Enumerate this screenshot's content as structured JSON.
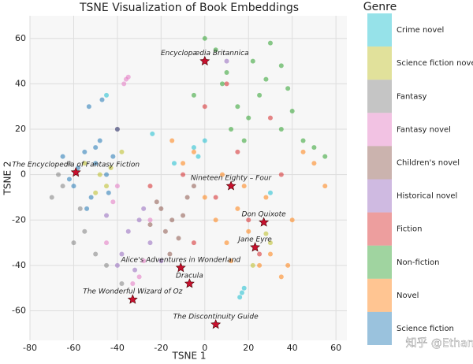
{
  "chart_data": {
    "type": "scatter",
    "title": "TSNE Visualization of Book Embeddings",
    "x_label": "TSNE 1",
    "y_label": "TSNE 2",
    "legend_title": "Genre",
    "watermark": "知乎 @Ethan",
    "xlim": [
      -80,
      65
    ],
    "ylim": [
      -73,
      70
    ],
    "xticks": [
      -80,
      -60,
      -40,
      -20,
      0,
      20,
      40,
      60
    ],
    "yticks": [
      -60,
      -40,
      -20,
      0,
      20,
      40,
      60
    ],
    "grid": true,
    "series": [
      {
        "name": "Crime novel",
        "color": "#17becf",
        "x": [
          -5,
          -3,
          0,
          17,
          18,
          16,
          -45,
          -14,
          30,
          -24
        ],
        "y": [
          12,
          8,
          15,
          -52,
          -50,
          -54,
          35,
          5,
          -8,
          18
        ]
      },
      {
        "name": "Science fiction novel",
        "color": "#bcbd22",
        "x": [
          -45,
          -48,
          -43,
          -50,
          30,
          28,
          -38,
          -55,
          22
        ],
        "y": [
          -5,
          0,
          3,
          -8,
          -30,
          -26,
          10,
          5,
          -40
        ]
      },
      {
        "name": "Fantasy",
        "color": "#7f7f7f",
        "x": [
          -55,
          -60,
          -65,
          -67,
          -50,
          -57,
          -38,
          -62,
          -45,
          -70
        ],
        "y": [
          -25,
          -30,
          -5,
          0,
          -35,
          -15,
          -48,
          5,
          -40,
          -10
        ]
      },
      {
        "name": "Fantasy novel",
        "color": "#e377c2",
        "x": [
          -40,
          -35,
          -30,
          -33,
          -36,
          -25,
          -42,
          -37,
          -28,
          -45
        ],
        "y": [
          -5,
          43,
          -45,
          -48,
          42,
          -20,
          -12,
          40,
          -38,
          -30
        ]
      },
      {
        "name": "Children's novel",
        "color": "#8c564b",
        "x": [
          -20,
          -15,
          -10,
          -18,
          -8,
          -22,
          -12,
          -25,
          -5,
          -16
        ],
        "y": [
          -15,
          -20,
          -18,
          -25,
          -10,
          -12,
          -28,
          -22,
          -5,
          -35
        ]
      },
      {
        "name": "Historical novel",
        "color": "#9467bd",
        "x": [
          -30,
          -35,
          -40,
          -25,
          -38,
          -28,
          -45,
          -32,
          10,
          -20
        ],
        "y": [
          -20,
          -25,
          -40,
          -30,
          -35,
          -15,
          -18,
          -42,
          50,
          -38
        ]
      },
      {
        "name": "Fiction",
        "color": "#d62728",
        "x": [
          -10,
          5,
          15,
          -25,
          20,
          35,
          -40,
          0,
          10,
          25,
          -5,
          30
        ],
        "y": [
          0,
          -10,
          10,
          -5,
          -20,
          0,
          20,
          30,
          40,
          -35,
          -30,
          25
        ]
      },
      {
        "name": "Non-fiction",
        "color": "#2ca02c",
        "x": [
          5,
          10,
          15,
          20,
          25,
          30,
          35,
          40,
          0,
          8,
          22,
          50,
          55,
          45,
          28,
          12,
          35,
          -5,
          18,
          38
        ],
        "y": [
          55,
          45,
          30,
          25,
          35,
          58,
          20,
          28,
          60,
          40,
          50,
          12,
          8,
          15,
          42,
          20,
          48,
          35,
          15,
          38
        ]
      },
      {
        "name": "Novel",
        "color": "#ff7f0e",
        "x": [
          0,
          5,
          10,
          15,
          20,
          25,
          30,
          35,
          40,
          -10,
          -5,
          45,
          50,
          38,
          8,
          18,
          28,
          -15,
          12,
          55
        ],
        "y": [
          -10,
          -20,
          -30,
          -15,
          -25,
          -40,
          -35,
          -45,
          -20,
          5,
          10,
          10,
          5,
          -40,
          0,
          -5,
          -10,
          15,
          -38,
          -5
        ]
      },
      {
        "name": "Science fiction",
        "color": "#1f77b4",
        "x": [
          -55,
          -50,
          -45,
          -60,
          -48,
          -52,
          -42,
          -58,
          -47,
          -53,
          -54,
          -40,
          -62,
          -50,
          -65,
          -44
        ],
        "y": [
          10,
          5,
          0,
          -5,
          15,
          -10,
          8,
          3,
          33,
          30,
          -15,
          20,
          -2,
          12,
          8,
          -8
        ]
      }
    ],
    "annotations": [
      {
        "text": "Encyclopædia Britannica",
        "x": 0,
        "y": 50
      },
      {
        "text": "The Encyclopedia of Fantasy Fiction",
        "x": -59,
        "y": 1
      },
      {
        "text": "Nineteen Eighty – Four",
        "x": 12,
        "y": -5
      },
      {
        "text": "Don Quixote",
        "x": 27,
        "y": -21
      },
      {
        "text": "Jane Eyre",
        "x": 23,
        "y": -32
      },
      {
        "text": "Alice's Adventures in Wonderland",
        "x": -11,
        "y": -41
      },
      {
        "text": "Dracula",
        "x": -7,
        "y": -48
      },
      {
        "text": "The Wonderful Wizard of Oz",
        "x": -33,
        "y": -55
      },
      {
        "text": "The Discontinuity Guide",
        "x": 5,
        "y": -66
      }
    ]
  }
}
